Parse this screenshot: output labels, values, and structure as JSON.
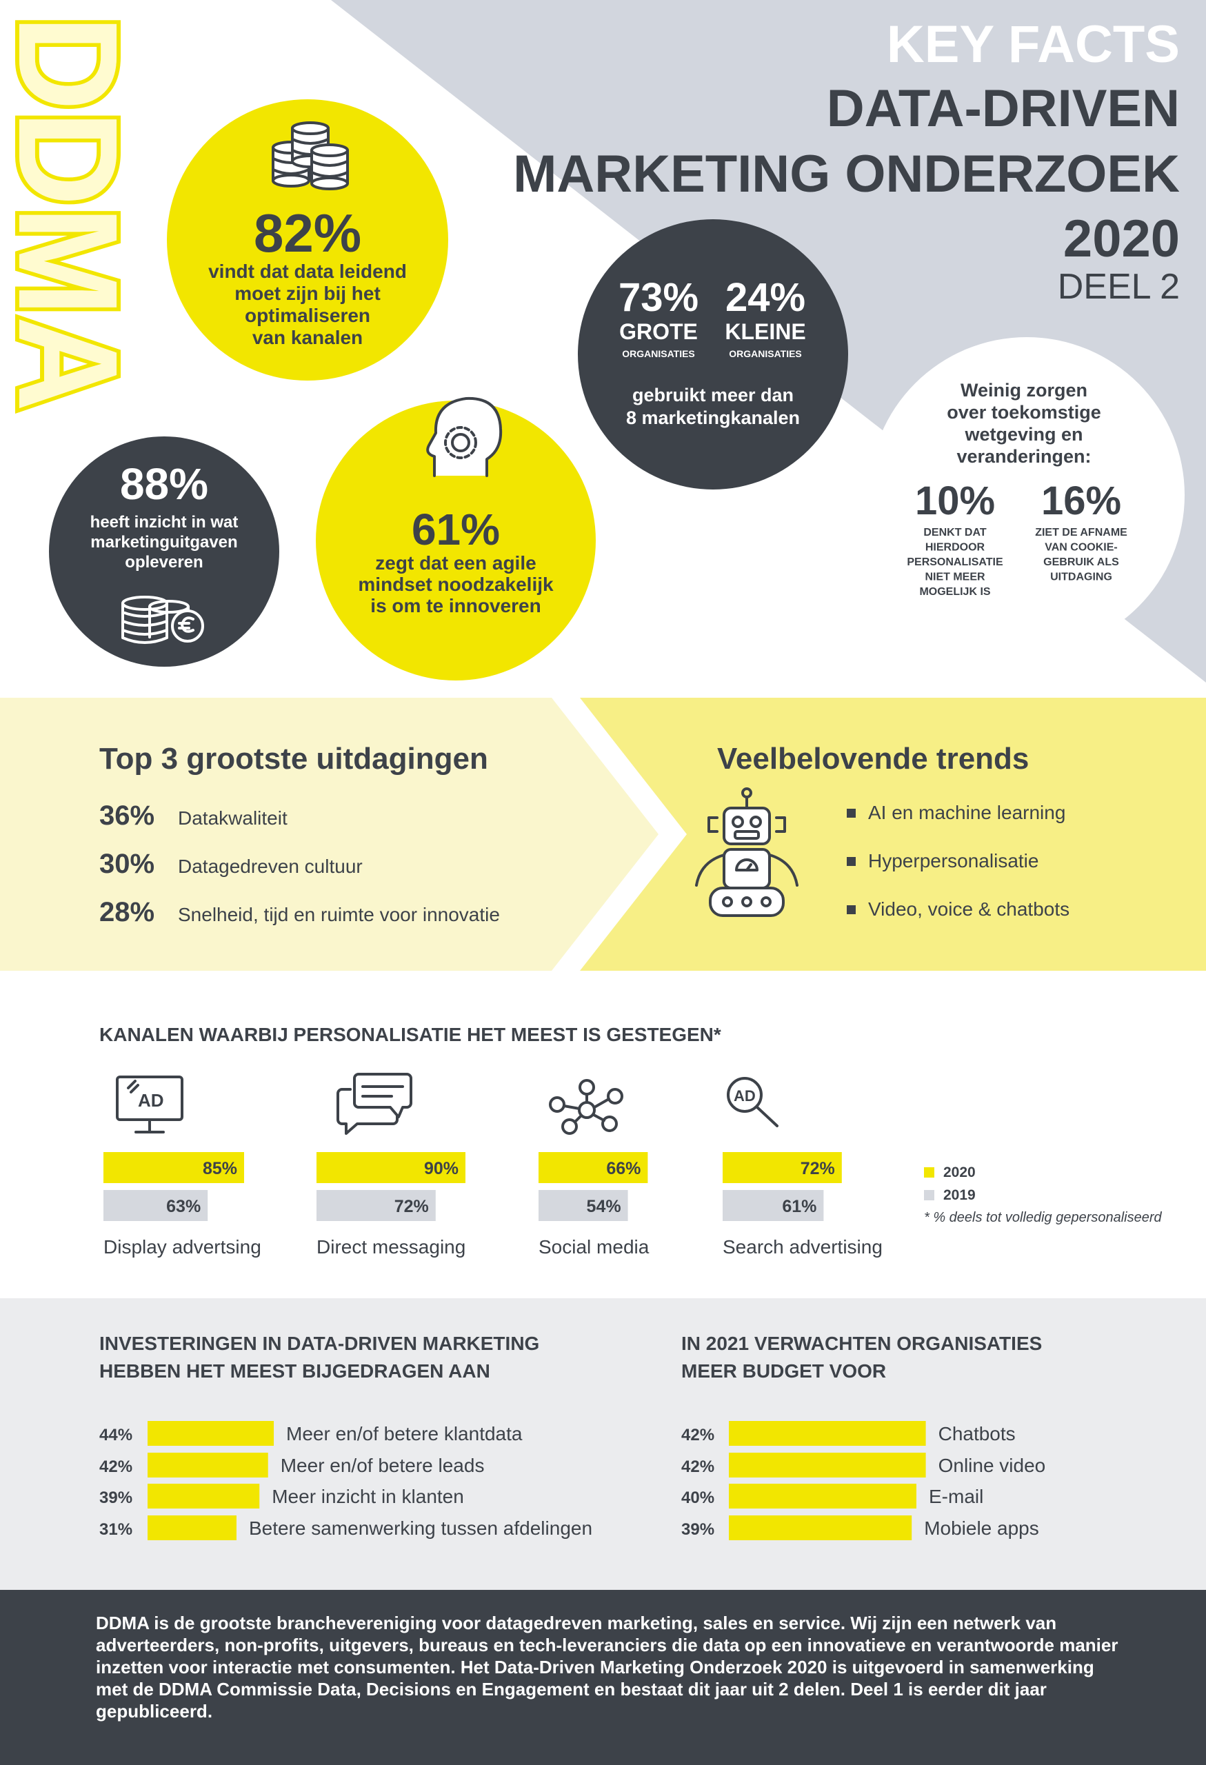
{
  "logo": "DDMA",
  "header": {
    "lines": [
      "KEY FACTS",
      "DATA-DRIVEN",
      "MARKETING ONDERZOEK",
      "2020"
    ],
    "subtitle": "DEEL 2"
  },
  "facts": {
    "data_leading": {
      "value": "82%",
      "lines": [
        "vindt dat data leidend",
        "moet zijn bij het",
        "optimaliseren",
        "van kanalen"
      ]
    },
    "channels_used": {
      "large": {
        "value": "73%",
        "label": "GROTE",
        "sub": "ORGANISATIES"
      },
      "small": {
        "value": "24%",
        "label": "KLEINE",
        "sub": "ORGANISATIES"
      },
      "lines": [
        "gebruikt meer dan",
        "8 marketingkanalen"
      ]
    },
    "regulation": {
      "lines": [
        "Weinig zorgen",
        "over toekomstige",
        "wetgeving en",
        "veranderingen:"
      ],
      "items": [
        {
          "value": "10%",
          "lines": [
            "DENKT DAT",
            "HIERDOOR",
            "PERSONALISATIE",
            "NIET MEER",
            "MOGELIJK IS"
          ]
        },
        {
          "value": "16%",
          "lines": [
            "ZIET DE AFNAME",
            "VAN COOKIE-",
            "GEBRUIK ALS",
            "UITDAGING"
          ]
        }
      ]
    },
    "spend_insight": {
      "value": "88%",
      "lines": [
        "heeft inzicht in wat",
        "marketinguitgaven",
        "opleveren"
      ]
    },
    "agile": {
      "value": "61%",
      "lines": [
        "zegt dat een agile",
        "mindset noodzakelijk",
        "is om te innoveren"
      ]
    }
  },
  "challenges": {
    "title": "Top 3 grootste uitdagingen",
    "items": [
      {
        "value": "36%",
        "label": "Datakwaliteit"
      },
      {
        "value": "30%",
        "label": "Datagedreven cultuur"
      },
      {
        "value": "28%",
        "label": "Snelheid, tijd en ruimte voor innovatie"
      }
    ]
  },
  "trends": {
    "title": "Veelbelovende trends",
    "items": [
      "AI en machine learning",
      "Hyperpersonalisatie",
      "Video, voice & chatbots"
    ]
  },
  "chart_data": [
    {
      "type": "bar",
      "title": "KANALEN WAARBIJ PERSONALISATIE HET MEEST IS GESTEGEN*",
      "categories": [
        "Display advertsing",
        "Direct messaging",
        "Social media",
        "Search advertising"
      ],
      "series": [
        {
          "name": "2020",
          "color": "#f2e600",
          "values": [
            85,
            90,
            66,
            72
          ],
          "value_labels": [
            "85%",
            "90%",
            "66%",
            "72%"
          ]
        },
        {
          "name": "2019",
          "color": "#d5d8de",
          "values": [
            63,
            72,
            54,
            61
          ],
          "value_labels": [
            "63%",
            "72%",
            "54%",
            "61%"
          ]
        }
      ],
      "note": "* % deels tot volledig gepersonaliseerd"
    },
    {
      "type": "bar",
      "title_lines": [
        "INVESTERINGEN IN DATA-DRIVEN MARKETING",
        "HEBBEN HET MEEST BIJGEDRAGEN AAN"
      ],
      "categories": [
        "Meer en/of betere klantdata",
        "Meer en/of betere leads",
        "Meer inzicht in klanten",
        "Betere samenwerking tussen afdelingen"
      ],
      "values": [
        44,
        42,
        39,
        31
      ],
      "value_labels": [
        "44%",
        "42%",
        "39%",
        "31%"
      ],
      "color": "#f2e600"
    },
    {
      "type": "bar",
      "title_lines": [
        "IN 2021 VERWACHTEN ORGANISATIES",
        "MEER BUDGET VOOR"
      ],
      "categories": [
        "Chatbots",
        "Online video",
        "E-mail",
        "Mobiele apps"
      ],
      "values": [
        42,
        42,
        40,
        39
      ],
      "value_labels": [
        "42%",
        "42%",
        "40%",
        "39%"
      ],
      "color": "#f2e600"
    }
  ],
  "footer": "DDMA is de grootste branchevereniging voor datagedreven marketing, sales en service. Wij zijn een netwerk van adverteerders, non-profits, uitgevers, bureaus en tech-leveranciers die data op een innovatieve en verantwoorde manier inzetten voor interactie met consumenten. Het Data-Driven Marketing Onderzoek 2020 is uitgevoerd in samenwerking met de DDMA Commissie Data, Decisions en Engagement en bestaat dit jaar uit 2 delen. Deel 1 is eerder dit jaar gepubliceerd."
}
